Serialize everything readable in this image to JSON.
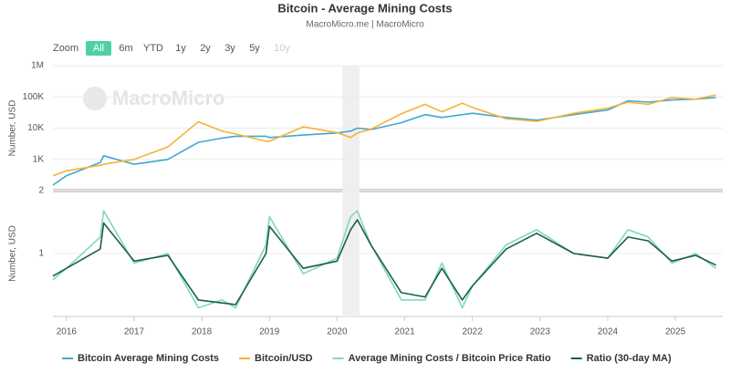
{
  "title": "Bitcoin - Average Mining Costs",
  "subtitle": "MacroMicro.me | MacroMicro",
  "watermark": "MacroMicro",
  "zoom": {
    "label": "Zoom",
    "options": [
      "All",
      "6m",
      "YTD",
      "1y",
      "2y",
      "3y",
      "5y",
      "10y"
    ],
    "active": "All"
  },
  "chart_data": [
    {
      "type": "line",
      "y_label": "Number, USD",
      "log_scale": true,
      "grid": true,
      "x": [
        2015.8,
        2016.0,
        2016.5,
        2016.55,
        2017.0,
        2017.5,
        2017.95,
        2018.3,
        2018.5,
        2018.95,
        2019.0,
        2019.5,
        2020.0,
        2020.2,
        2020.3,
        2020.5,
        2020.95,
        2021.3,
        2021.55,
        2021.85,
        2022.0,
        2022.5,
        2022.95,
        2023.5,
        2024.0,
        2024.3,
        2024.6,
        2024.95,
        2025.3,
        2025.6
      ],
      "xlim": [
        2015.8,
        2025.7
      ],
      "shaded_range": [
        2020.08,
        2020.33
      ],
      "ylim": [
        100,
        1000000
      ],
      "yticks": [
        {
          "value": 1000,
          "label": "1K"
        },
        {
          "value": 10000,
          "label": "10K"
        },
        {
          "value": 100000,
          "label": "100K"
        },
        {
          "value": 1000000,
          "label": "1M"
        }
      ],
      "series": [
        {
          "name": "Bitcoin Average Mining Costs",
          "color": "#3fa7d6",
          "values": [
            150,
            300,
            800,
            1300,
            700,
            1000,
            3500,
            4800,
            5500,
            5500,
            5000,
            6000,
            7000,
            8000,
            10000,
            9000,
            15000,
            27000,
            22000,
            27000,
            30000,
            22000,
            18000,
            27000,
            38000,
            75000,
            68000,
            80000,
            85000,
            95000
          ]
        },
        {
          "name": "Bitcoin/USD",
          "color": "#f5b335",
          "values": [
            300,
            430,
            650,
            700,
            1000,
            2500,
            16000,
            8000,
            6500,
            3800,
            3800,
            11000,
            7200,
            5000,
            7000,
            9200,
            29000,
            58000,
            33000,
            63000,
            46000,
            20000,
            16500,
            30000,
            44000,
            68000,
            58000,
            95000,
            84000,
            115000
          ]
        }
      ]
    },
    {
      "type": "line",
      "y_label": "Number, USD",
      "log_scale": true,
      "grid": true,
      "x": [
        2015.8,
        2016.0,
        2016.5,
        2016.55,
        2017.0,
        2017.5,
        2017.95,
        2018.3,
        2018.5,
        2018.95,
        2019.0,
        2019.5,
        2020.0,
        2020.2,
        2020.3,
        2020.5,
        2020.95,
        2021.3,
        2021.55,
        2021.85,
        2022.0,
        2022.5,
        2022.95,
        2023.5,
        2024.0,
        2024.3,
        2024.6,
        2024.95,
        2025.3,
        2025.6
      ],
      "xlim": [
        2015.8,
        2025.7
      ],
      "shaded_range": [
        2020.08,
        2020.33
      ],
      "xticks": [
        2016,
        2017,
        2018,
        2019,
        2020,
        2021,
        2022,
        2023,
        2024,
        2025
      ],
      "ylim": [
        0.5,
        2
      ],
      "yticks": [
        1,
        2
      ],
      "series": [
        {
          "name": "Average Mining Costs / Bitcoin Price Ratio",
          "color": "#7fd8be",
          "values": [
            0.75,
            0.85,
            1.2,
            1.6,
            0.9,
            1.0,
            0.55,
            0.6,
            0.55,
            1.1,
            1.5,
            0.8,
            0.95,
            1.5,
            1.6,
            1.1,
            0.6,
            0.6,
            0.9,
            0.55,
            0.7,
            1.1,
            1.3,
            1.0,
            0.95,
            1.3,
            1.2,
            0.9,
            1.0,
            0.85
          ]
        },
        {
          "name": "Ratio (30-day MA)",
          "color": "#1d5e4a",
          "values": [
            0.78,
            0.85,
            1.05,
            1.4,
            0.92,
            0.98,
            0.6,
            0.58,
            0.57,
            1.0,
            1.35,
            0.85,
            0.92,
            1.3,
            1.45,
            1.1,
            0.65,
            0.62,
            0.85,
            0.6,
            0.7,
            1.05,
            1.25,
            1.0,
            0.95,
            1.2,
            1.15,
            0.92,
            0.98,
            0.88
          ]
        }
      ]
    }
  ]
}
